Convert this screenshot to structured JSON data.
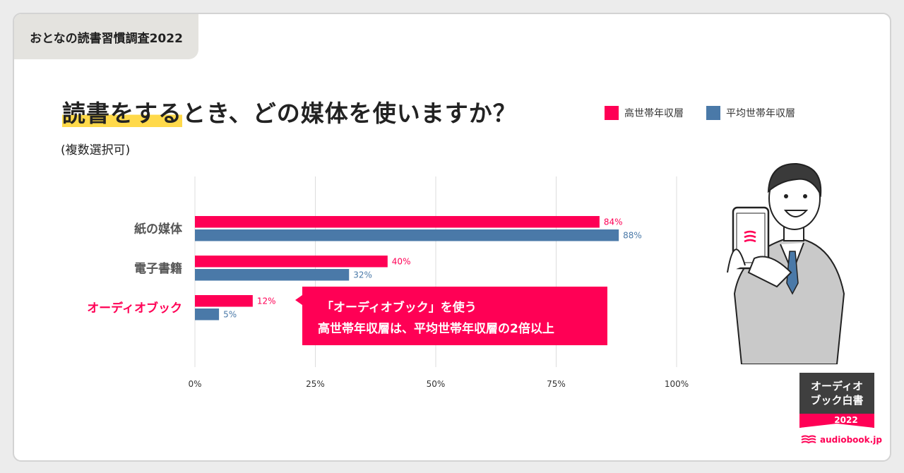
{
  "header_tag": "おとなの読書習慣調査2022",
  "title": {
    "highlight": "読書をする",
    "rest": "とき、どの媒体を使いますか？"
  },
  "subtitle": "(複数選択可)",
  "legend": [
    {
      "label": "高世帯年収層",
      "color": "#ff0055"
    },
    {
      "label": "平均世帯年収層",
      "color": "#4a79a8"
    }
  ],
  "chart_data": {
    "type": "bar",
    "orientation": "horizontal",
    "categories": [
      "紙の媒体",
      "電子書籍",
      "オーディオブック"
    ],
    "highlight_category": "オーディオブック",
    "highlight_color": "#ff0055",
    "series": [
      {
        "name": "高世帯年収層",
        "color": "#ff0055",
        "values": [
          84,
          40,
          12
        ]
      },
      {
        "name": "平均世帯年収層",
        "color": "#4a79a8",
        "values": [
          88,
          32,
          5
        ]
      }
    ],
    "value_suffix": "%",
    "xlim": [
      0,
      100
    ],
    "ticks": [
      "0%",
      "25%",
      "50%",
      "75%",
      "100%"
    ],
    "grid": true
  },
  "callout": {
    "line1": "「オーディオブック」を使う",
    "line2": "高世帯年収層は、平均世帯年収層の2倍以上"
  },
  "badge": {
    "line1": "オーディオ",
    "line2": "ブック白書",
    "year": "2022"
  },
  "brand": "audiobook.jp"
}
